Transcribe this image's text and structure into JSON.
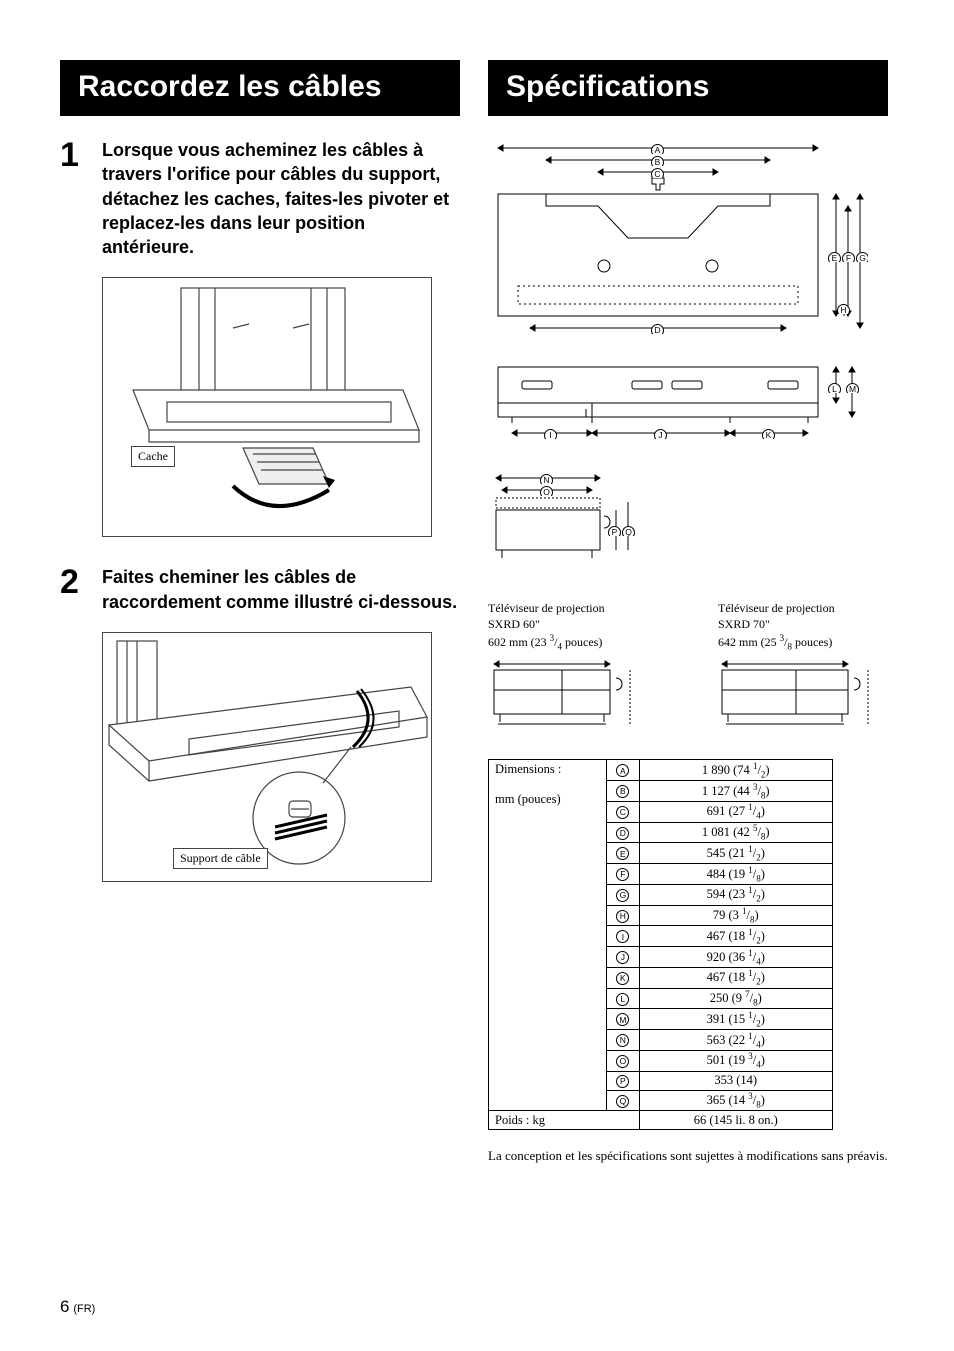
{
  "left": {
    "heading": "Raccordez les câbles",
    "step1_num": "1",
    "step1_text": "Lorsque vous acheminez les câbles à travers l'orifice pour câbles du support, détachez les caches, faites-les pivoter et replacez-les dans leur position antérieure.",
    "fig1_label": "Cache",
    "step2_num": "2",
    "step2_text": "Faites cheminer les câbles de raccordement comme illustré ci-dessous.",
    "fig2_label": "Support de câble"
  },
  "right": {
    "heading": "Spécifications",
    "tv60_title_a": "Téléviseur de projection",
    "tv60_title_b": "SXRD 60\"",
    "tv60_dim": "602 mm (23 3/4 pouces)",
    "tv70_title_a": "Téléviseur de projection",
    "tv70_title_b": "SXRD 70\"",
    "tv70_dim": "642 mm (25 3/8 pouces)",
    "dim_label": "Dimensions :",
    "dim_unit": "mm (pouces)",
    "weight_label": "Poids : kg",
    "weight_value": "66 (145 li. 8 on.)",
    "letters": [
      "A",
      "B",
      "C",
      "D",
      "E",
      "F",
      "G",
      "H",
      "I",
      "J",
      "K",
      "L",
      "M",
      "N",
      "O",
      "P",
      "Q"
    ],
    "rows": [
      {
        "l": "A",
        "mm": "1 890",
        "in_w": "74",
        "in_n": "1",
        "in_d": "2"
      },
      {
        "l": "B",
        "mm": "1 127",
        "in_w": "44",
        "in_n": "3",
        "in_d": "8"
      },
      {
        "l": "C",
        "mm": "691",
        "in_w": "27",
        "in_n": "1",
        "in_d": "4"
      },
      {
        "l": "D",
        "mm": "1 081",
        "in_w": "42",
        "in_n": "5",
        "in_d": "8"
      },
      {
        "l": "E",
        "mm": "545",
        "in_w": "21",
        "in_n": "1",
        "in_d": "2"
      },
      {
        "l": "F",
        "mm": "484",
        "in_w": "19",
        "in_n": "1",
        "in_d": "8"
      },
      {
        "l": "G",
        "mm": "594",
        "in_w": "23",
        "in_n": "1",
        "in_d": "2"
      },
      {
        "l": "H",
        "mm": "79",
        "in_w": "3",
        "in_n": "1",
        "in_d": "8"
      },
      {
        "l": "I",
        "mm": "467",
        "in_w": "18",
        "in_n": "1",
        "in_d": "2"
      },
      {
        "l": "J",
        "mm": "920",
        "in_w": "36",
        "in_n": "1",
        "in_d": "4"
      },
      {
        "l": "K",
        "mm": "467",
        "in_w": "18",
        "in_n": "1",
        "in_d": "2"
      },
      {
        "l": "L",
        "mm": "250",
        "in_w": "9",
        "in_n": "7",
        "in_d": "8"
      },
      {
        "l": "M",
        "mm": "391",
        "in_w": "15",
        "in_n": "1",
        "in_d": "2"
      },
      {
        "l": "N",
        "mm": "563",
        "in_w": "22",
        "in_n": "1",
        "in_d": "4"
      },
      {
        "l": "O",
        "mm": "501",
        "in_w": "19",
        "in_n": "3",
        "in_d": "4"
      },
      {
        "l": "P",
        "mm": "353",
        "in_w": "14",
        "in_n": "",
        "in_d": ""
      },
      {
        "l": "Q",
        "mm": "365",
        "in_w": "14",
        "in_n": "3",
        "in_d": "8"
      }
    ],
    "footnote": "La conception et les spécifications sont sujettes à modifications sans préavis."
  },
  "page": {
    "num": "6",
    "lang": "(FR)"
  },
  "style": {
    "bg": "#ffffff",
    "heading_bg": "#000000",
    "heading_fg": "#ffffff",
    "line": "#000000",
    "guide": "#888888"
  }
}
